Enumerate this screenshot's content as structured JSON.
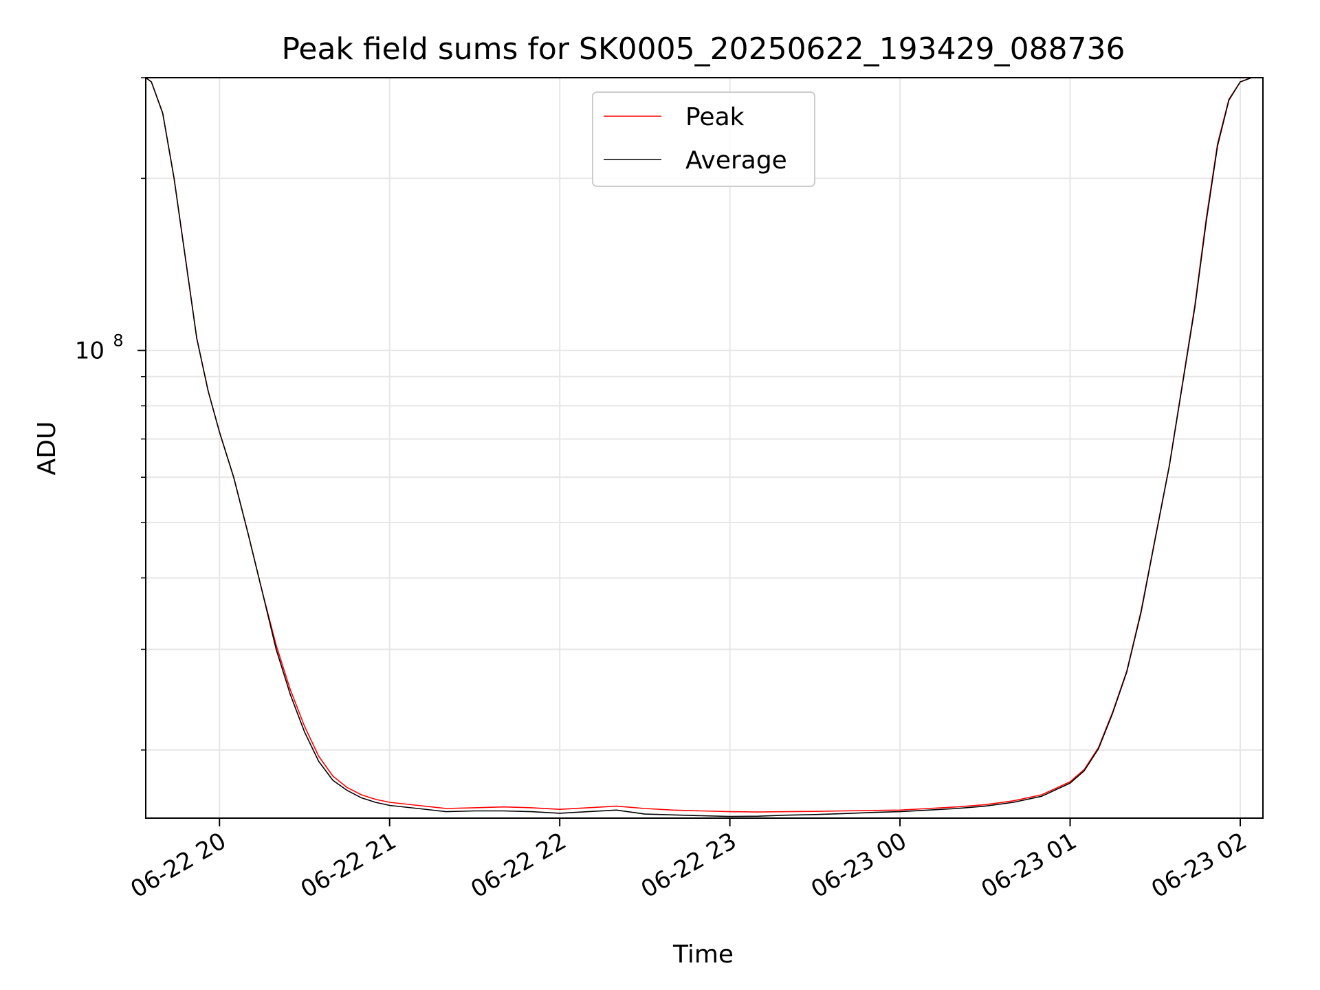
{
  "chart_data": {
    "type": "line",
    "title": "Peak field sums for SK0005_20250622_193429_088736",
    "xlabel": "Time",
    "ylabel": "ADU",
    "x_ticks": [
      "06-22 20",
      "06-22 21",
      "06-22 22",
      "06-22 23",
      "06-23 00",
      "06-23 01",
      "06-23 02"
    ],
    "y_tick_labels": [
      {
        "base": "10",
        "exponent": "8",
        "value": 100000000
      }
    ],
    "y_scale": "log",
    "xlim": [
      "2025-06-22 19:34",
      "2025-06-23 02:08"
    ],
    "ylim": [
      15200000,
      300000000
    ],
    "grid": true,
    "legend_location": "upper center",
    "series": [
      {
        "name": "Peak",
        "color": "#ff0000",
        "x": [
          "2025-06-22 19:34",
          "2025-06-22 19:36",
          "2025-06-22 19:40",
          "2025-06-22 19:44",
          "2025-06-22 19:48",
          "2025-06-22 19:52",
          "2025-06-22 19:56",
          "2025-06-22 20:00",
          "2025-06-22 20:05",
          "2025-06-22 20:10",
          "2025-06-22 20:15",
          "2025-06-22 20:20",
          "2025-06-22 20:25",
          "2025-06-22 20:30",
          "2025-06-22 20:35",
          "2025-06-22 20:40",
          "2025-06-22 20:45",
          "2025-06-22 20:50",
          "2025-06-22 20:55",
          "2025-06-22 21:00",
          "2025-06-22 21:10",
          "2025-06-22 21:20",
          "2025-06-22 21:30",
          "2025-06-22 21:40",
          "2025-06-22 21:50",
          "2025-06-22 22:00",
          "2025-06-22 22:10",
          "2025-06-22 22:20",
          "2025-06-22 22:30",
          "2025-06-22 22:40",
          "2025-06-22 22:50",
          "2025-06-22 23:00",
          "2025-06-22 23:10",
          "2025-06-22 23:20",
          "2025-06-22 23:30",
          "2025-06-22 23:40",
          "2025-06-22 23:50",
          "2025-06-23 00:00",
          "2025-06-23 00:10",
          "2025-06-23 00:20",
          "2025-06-23 00:30",
          "2025-06-23 00:40",
          "2025-06-23 00:50",
          "2025-06-23 01:00",
          "2025-06-23 01:05",
          "2025-06-23 01:10",
          "2025-06-23 01:15",
          "2025-06-23 01:20",
          "2025-06-23 01:25",
          "2025-06-23 01:30",
          "2025-06-23 01:35",
          "2025-06-23 01:40",
          "2025-06-23 01:44",
          "2025-06-23 01:48",
          "2025-06-23 01:52",
          "2025-06-23 01:56",
          "2025-06-23 02:00",
          "2025-06-23 02:04",
          "2025-06-23 02:08"
        ],
        "y": [
          300000000,
          295000000,
          260000000,
          200000000,
          145000000,
          105000000,
          85000000,
          72000000,
          60000000,
          48000000,
          38000000,
          30500000,
          25500000,
          22000000,
          19500000,
          18000000,
          17200000,
          16700000,
          16400000,
          16200000,
          16000000,
          15800000,
          15850000,
          15900000,
          15850000,
          15750000,
          15850000,
          15950000,
          15800000,
          15700000,
          15650000,
          15600000,
          15580000,
          15600000,
          15620000,
          15650000,
          15680000,
          15700000,
          15800000,
          15900000,
          16050000,
          16300000,
          16700000,
          17600000,
          18500000,
          20200000,
          23300000,
          27500000,
          35000000,
          47000000,
          63000000,
          90000000,
          120000000,
          170000000,
          230000000,
          275000000,
          295000000,
          300000000,
          300000000
        ]
      },
      {
        "name": "Average",
        "color": "#000000",
        "x": [
          "2025-06-22 19:34",
          "2025-06-22 19:36",
          "2025-06-22 19:40",
          "2025-06-22 19:44",
          "2025-06-22 19:48",
          "2025-06-22 19:52",
          "2025-06-22 19:56",
          "2025-06-22 20:00",
          "2025-06-22 20:05",
          "2025-06-22 20:10",
          "2025-06-22 20:15",
          "2025-06-22 20:20",
          "2025-06-22 20:25",
          "2025-06-22 20:30",
          "2025-06-22 20:35",
          "2025-06-22 20:40",
          "2025-06-22 20:45",
          "2025-06-22 20:50",
          "2025-06-22 20:55",
          "2025-06-22 21:00",
          "2025-06-22 21:10",
          "2025-06-22 21:20",
          "2025-06-22 21:30",
          "2025-06-22 21:40",
          "2025-06-22 21:50",
          "2025-06-22 22:00",
          "2025-06-22 22:10",
          "2025-06-22 22:20",
          "2025-06-22 22:30",
          "2025-06-22 22:40",
          "2025-06-22 22:50",
          "2025-06-22 23:00",
          "2025-06-22 23:10",
          "2025-06-22 23:20",
          "2025-06-22 23:30",
          "2025-06-22 23:40",
          "2025-06-22 23:50",
          "2025-06-23 00:00",
          "2025-06-23 00:10",
          "2025-06-23 00:20",
          "2025-06-23 00:30",
          "2025-06-23 00:40",
          "2025-06-23 00:50",
          "2025-06-23 01:00",
          "2025-06-23 01:05",
          "2025-06-23 01:10",
          "2025-06-23 01:15",
          "2025-06-23 01:20",
          "2025-06-23 01:25",
          "2025-06-23 01:30",
          "2025-06-23 01:35",
          "2025-06-23 01:40",
          "2025-06-23 01:44",
          "2025-06-23 01:48",
          "2025-06-23 01:52",
          "2025-06-23 01:56",
          "2025-06-23 02:00",
          "2025-06-23 02:04",
          "2025-06-23 02:08"
        ],
        "y": [
          300000000,
          295000000,
          260000000,
          200000000,
          145000000,
          105000000,
          85000000,
          72000000,
          60000000,
          48000000,
          38000000,
          30000000,
          25000000,
          21500000,
          19100000,
          17700000,
          17000000,
          16500000,
          16200000,
          16000000,
          15800000,
          15600000,
          15650000,
          15650000,
          15600000,
          15500000,
          15600000,
          15700000,
          15450000,
          15400000,
          15350000,
          15300000,
          15320000,
          15380000,
          15420000,
          15480000,
          15550000,
          15600000,
          15700000,
          15800000,
          15950000,
          16200000,
          16600000,
          17500000,
          18400000,
          20100000,
          23200000,
          27400000,
          34800000,
          46800000,
          62800000,
          89500000,
          119000000,
          168000000,
          228000000,
          274000000,
          295000000,
          300000000,
          300000000
        ]
      }
    ]
  }
}
